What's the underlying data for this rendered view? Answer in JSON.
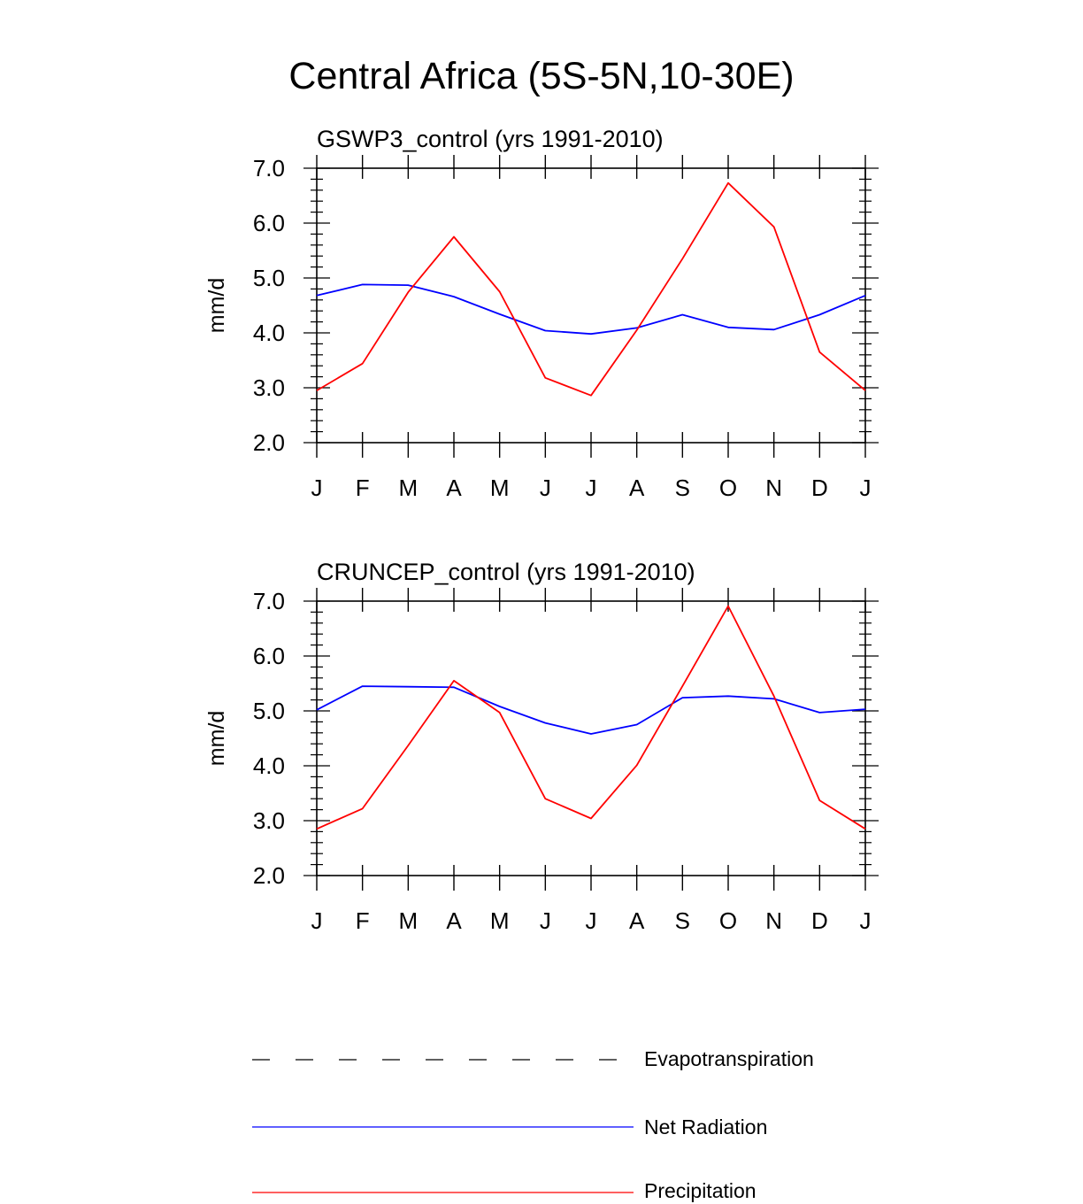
{
  "title": "Central Africa (5S-5N,10-30E)",
  "colors": {
    "net_radiation": "#0000ff",
    "precipitation": "#ff0000",
    "evapotranspiration": "#000000"
  },
  "legend": [
    {
      "label": "Evapotranspiration",
      "style": "dashed",
      "color": "#000000"
    },
    {
      "label": "Net Radiation",
      "style": "solid",
      "color": "#0000ff"
    },
    {
      "label": "Precipitation",
      "style": "solid",
      "color": "#ff0000"
    }
  ],
  "chart_data": [
    {
      "type": "line",
      "title": "GSWP3_control (yrs 1991-2010)",
      "xlabel": "",
      "ylabel": "mm/d",
      "categories": [
        "J",
        "F",
        "M",
        "A",
        "M",
        "J",
        "J",
        "A",
        "S",
        "O",
        "N",
        "D",
        "J"
      ],
      "ylim": [
        2.0,
        7.0
      ],
      "yticks": [
        "2.0",
        "3.0",
        "4.0",
        "5.0",
        "6.0",
        "7.0"
      ],
      "series": [
        {
          "name": "Net Radiation",
          "color": "#0000ff",
          "values": [
            4.68,
            4.88,
            4.87,
            4.66,
            4.34,
            4.04,
            3.98,
            4.09,
            4.33,
            4.1,
            4.06,
            4.33,
            4.68
          ]
        },
        {
          "name": "Precipitation",
          "color": "#ff0000",
          "values": [
            2.95,
            3.44,
            4.74,
            5.75,
            4.75,
            3.18,
            2.86,
            4.05,
            5.35,
            6.73,
            5.93,
            3.65,
            2.95
          ]
        }
      ]
    },
    {
      "type": "line",
      "title": "CRUNCEP_control (yrs 1991-2010)",
      "xlabel": "",
      "ylabel": "mm/d",
      "categories": [
        "J",
        "F",
        "M",
        "A",
        "M",
        "J",
        "J",
        "A",
        "S",
        "O",
        "N",
        "D",
        "J"
      ],
      "ylim": [
        2.0,
        7.0
      ],
      "yticks": [
        "2.0",
        "3.0",
        "4.0",
        "5.0",
        "6.0",
        "7.0"
      ],
      "series": [
        {
          "name": "Net Radiation",
          "color": "#0000ff",
          "values": [
            5.02,
            5.45,
            5.44,
            5.43,
            5.08,
            4.78,
            4.58,
            4.75,
            5.24,
            5.27,
            5.22,
            4.97,
            5.03
          ]
        },
        {
          "name": "Precipitation",
          "color": "#ff0000",
          "values": [
            2.85,
            3.22,
            4.37,
            5.55,
            4.97,
            3.4,
            3.04,
            4.01,
            5.45,
            6.91,
            5.27,
            3.37,
            2.85
          ]
        }
      ]
    }
  ]
}
